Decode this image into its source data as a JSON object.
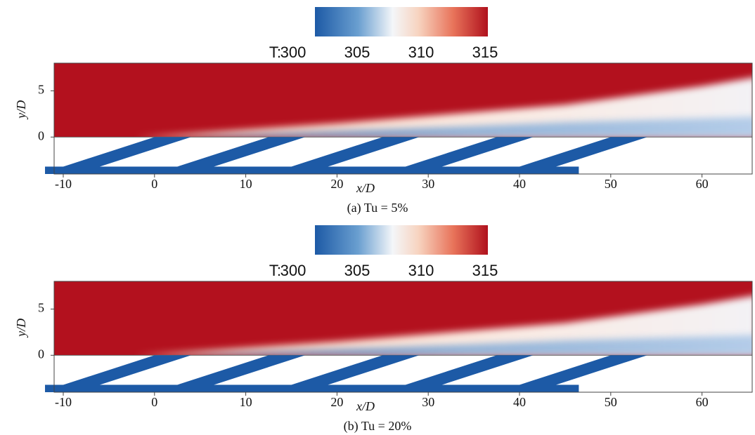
{
  "chart_data": [
    {
      "type": "contour",
      "colorbar_label": "T:",
      "clim": [
        300,
        315
      ],
      "cticks": [
        300,
        305,
        310,
        315
      ],
      "xlabel": "x/D",
      "ylabel": "y/D",
      "xlim": [
        -11,
        65.5
      ],
      "xticks": [
        -10,
        0,
        10,
        20,
        30,
        40,
        50,
        60
      ],
      "ylim": [
        -4,
        8
      ],
      "yticks": [
        0,
        5
      ],
      "caption": "(a)  Tu = 5%"
    },
    {
      "type": "contour",
      "colorbar_label": "T:",
      "clim": [
        300,
        315
      ],
      "cticks": [
        300,
        305,
        310,
        315
      ],
      "xlabel": "x/D",
      "ylabel": "y/D",
      "xlim": [
        -11,
        65.5
      ],
      "xticks": [
        -10,
        0,
        10,
        20,
        30,
        40,
        50,
        60
      ],
      "ylim": [
        -4,
        8
      ],
      "yticks": [
        0,
        5
      ],
      "caption": "(b) Tu = 20%"
    }
  ]
}
